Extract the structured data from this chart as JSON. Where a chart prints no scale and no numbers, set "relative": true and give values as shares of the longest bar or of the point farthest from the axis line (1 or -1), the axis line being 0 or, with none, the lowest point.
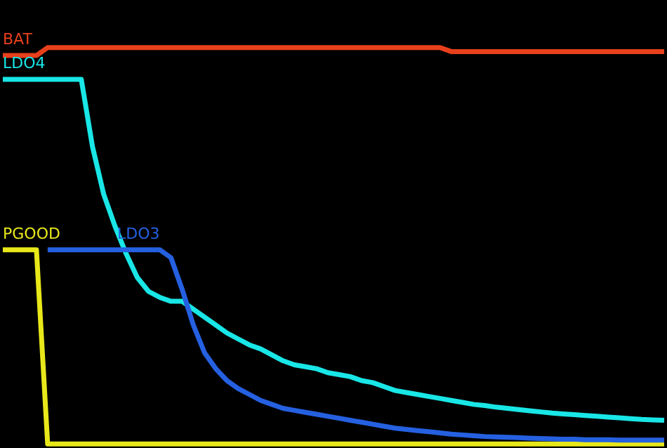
{
  "chart_data": {
    "type": "line",
    "relative": true,
    "legend": false,
    "grid": false,
    "line_style": "solid",
    "marker": "none",
    "categories": [
      null,
      null,
      null,
      null,
      null,
      null,
      null,
      null,
      null,
      null,
      null,
      null,
      null,
      null,
      null,
      null,
      null,
      null,
      null,
      null,
      null,
      null,
      null,
      null,
      null,
      null,
      null,
      null,
      null,
      null,
      null,
      null,
      null,
      null,
      null,
      null,
      null,
      null,
      null,
      null,
      null,
      null,
      null,
      null,
      null,
      null,
      null,
      null,
      null,
      null,
      null,
      null,
      null,
      null,
      null,
      null,
      null,
      null,
      null,
      null
    ],
    "series": [
      {
        "name": "BAT",
        "color": "#e8401c",
        "values": [
          0.98,
          0.98,
          0.98,
          0.98,
          1.0,
          1.0,
          1.0,
          1.0,
          1.0,
          1.0,
          1.0,
          1.0,
          1.0,
          1.0,
          1.0,
          1.0,
          1.0,
          1.0,
          1.0,
          1.0,
          1.0,
          1.0,
          1.0,
          1.0,
          1.0,
          1.0,
          1.0,
          1.0,
          1.0,
          1.0,
          1.0,
          1.0,
          1.0,
          1.0,
          1.0,
          1.0,
          1.0,
          1.0,
          1.0,
          1.0,
          0.99,
          0.99,
          0.99,
          0.99,
          0.99,
          0.99,
          0.99,
          0.99,
          0.99,
          0.99,
          0.99,
          0.99,
          0.99,
          0.99,
          0.99,
          0.99,
          0.99,
          0.99,
          0.99,
          0.99
        ]
      },
      {
        "name": "LDO4",
        "color": "#19e6e6",
        "values": [
          0.92,
          0.92,
          0.92,
          0.92,
          0.92,
          0.92,
          0.92,
          0.92,
          0.75,
          0.63,
          0.55,
          0.48,
          0.42,
          0.385,
          0.37,
          0.36,
          0.36,
          0.34,
          0.32,
          0.3,
          0.28,
          0.265,
          0.25,
          0.24,
          0.225,
          0.21,
          0.2,
          0.195,
          0.19,
          0.18,
          0.175,
          0.17,
          0.16,
          0.155,
          0.145,
          0.135,
          0.13,
          0.125,
          0.12,
          0.115,
          0.11,
          0.105,
          0.1,
          0.097,
          0.093,
          0.09,
          0.087,
          0.084,
          0.081,
          0.078,
          0.076,
          0.074,
          0.072,
          0.07,
          0.068,
          0.066,
          0.064,
          0.062,
          0.061,
          0.06
        ]
      },
      {
        "name": "PGOOD",
        "color": "#e8e81a",
        "values": [
          0.49,
          0.49,
          0.49,
          0.49,
          0,
          0,
          0,
          0,
          0,
          0,
          0,
          0,
          0,
          0,
          0,
          0,
          0,
          0,
          0,
          0,
          0,
          0,
          0,
          0,
          0,
          0,
          0,
          0,
          0,
          0,
          0,
          0,
          0,
          0,
          0,
          0,
          0,
          0,
          0,
          0,
          0,
          0,
          0,
          0,
          0,
          0,
          0,
          0,
          0,
          0,
          0,
          0,
          0,
          0,
          0,
          0,
          0,
          0,
          0,
          0
        ]
      },
      {
        "name": "LDO3",
        "color": "#2560e0",
        "values": [
          null,
          null,
          null,
          null,
          0.49,
          0.49,
          0.49,
          0.49,
          0.49,
          0.49,
          0.49,
          0.49,
          0.49,
          0.49,
          0.49,
          0.47,
          0.39,
          0.3,
          0.23,
          0.19,
          0.16,
          0.14,
          0.125,
          0.11,
          0.1,
          0.09,
          0.085,
          0.08,
          0.075,
          0.07,
          0.065,
          0.06,
          0.055,
          0.05,
          0.045,
          0.04,
          0.037,
          0.034,
          0.031,
          0.028,
          0.025,
          0.023,
          0.021,
          0.019,
          0.018,
          0.017,
          0.016,
          0.015,
          0.014,
          0.013,
          0.012,
          0.012,
          0.011,
          0.011,
          0.011,
          0.01,
          0.01,
          0.01,
          0.01,
          0.01
        ]
      }
    ]
  }
}
